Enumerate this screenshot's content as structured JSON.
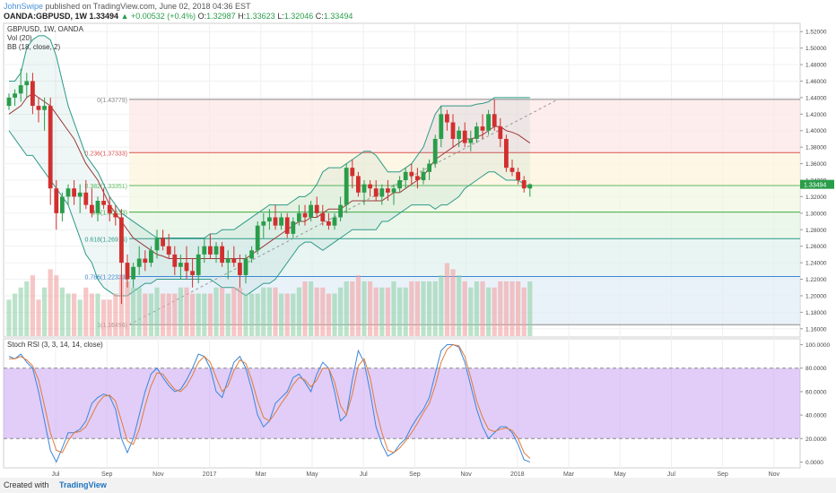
{
  "header": {
    "author": "JohnSwipe",
    "published": "published on TradingView.com, June 02, 2018 04:36 EST",
    "symbol": "OANDA:GBPUSD, 1W",
    "last": "1.33494",
    "change": "▲ +0.00532 (+0.4%)",
    "o_label": "O:",
    "o_value": "1.32987",
    "h_label": "H:",
    "h_value": "1.33623",
    "l_label": "L:",
    "l_value": "1.32046",
    "c_label": "C:",
    "c_value": "1.33494"
  },
  "legend": {
    "instrument": "GBP/USD, 1W, OANDA",
    "vol": "Vol (20)",
    "bb": "BB (18, close, 2)",
    "stoch": "Stoch RSI (3, 3, 14, 14, close)"
  },
  "footer": {
    "created": "Created with",
    "brand": "TradingView"
  },
  "colors": {
    "up": "#2a9d4a",
    "down": "#d22f2f",
    "bb": "#2e9a88",
    "stoch_k": "#3b86d9",
    "stoch_d": "#e07b3a",
    "stoch_band": "#c9a4f2"
  },
  "chart_data": {
    "type": "candlestick",
    "x_tick_labels": [
      "Jul",
      "Sep",
      "Nov",
      "2017",
      "Mar",
      "May",
      "Jul",
      "Sep",
      "Nov",
      "2018",
      "Mar",
      "May",
      "Jul",
      "Sep",
      "Nov"
    ],
    "price_axis_labels": [
      "1.52000",
      "1.50000",
      "1.48000",
      "1.46000",
      "1.44000",
      "1.42000",
      "1.40000",
      "1.38000",
      "1.36000",
      "1.34000",
      "1.32000",
      "1.30000",
      "1.28000",
      "1.26000",
      "1.24000",
      "1.22000",
      "1.20000",
      "1.18000",
      "1.16000"
    ],
    "price_ylim": [
      1.15,
      1.53
    ],
    "last_price_label": "1.33494",
    "fib_levels": [
      {
        "label": "0(1.43779)",
        "value": 1.43779,
        "color": "#888888"
      },
      {
        "label": "0.236(1.37333)",
        "value": 1.37333,
        "color": "#d9534f"
      },
      {
        "label": "0.382(1.33351)",
        "value": 1.33351,
        "color": "#5cb85c"
      },
      {
        "label": "0.5(1.30133)",
        "value": 1.30133,
        "color": "#3fae3f"
      },
      {
        "label": "0.618(1.26915)",
        "value": 1.26915,
        "color": "#2e9a88"
      },
      {
        "label": "0.786(1.22333)",
        "value": 1.22333,
        "color": "#3b86d9"
      },
      {
        "label": "1(1.16496)",
        "value": 1.16496,
        "color": "#888888"
      }
    ],
    "candles": [
      [
        1.43,
        1.445,
        1.425,
        1.44
      ],
      [
        1.44,
        1.45,
        1.43,
        1.445
      ],
      [
        1.445,
        1.475,
        1.435,
        1.455
      ],
      [
        1.455,
        1.47,
        1.44,
        1.46
      ],
      [
        1.46,
        1.47,
        1.42,
        1.43
      ],
      [
        1.43,
        1.44,
        1.41,
        1.425
      ],
      [
        1.425,
        1.44,
        1.4,
        1.43
      ],
      [
        1.43,
        1.44,
        1.31,
        1.33
      ],
      [
        1.33,
        1.34,
        1.28,
        1.3
      ],
      [
        1.3,
        1.325,
        1.29,
        1.32
      ],
      [
        1.32,
        1.335,
        1.31,
        1.33
      ],
      [
        1.33,
        1.34,
        1.31,
        1.32
      ],
      [
        1.32,
        1.335,
        1.3,
        1.325
      ],
      [
        1.325,
        1.34,
        1.305,
        1.31
      ],
      [
        1.31,
        1.33,
        1.295,
        1.3
      ],
      [
        1.3,
        1.32,
        1.29,
        1.315
      ],
      [
        1.315,
        1.33,
        1.305,
        1.31
      ],
      [
        1.31,
        1.32,
        1.29,
        1.3
      ],
      [
        1.3,
        1.31,
        1.285,
        1.295
      ],
      [
        1.295,
        1.305,
        1.19,
        1.24
      ],
      [
        1.24,
        1.25,
        1.21,
        1.22
      ],
      [
        1.22,
        1.24,
        1.21,
        1.235
      ],
      [
        1.235,
        1.26,
        1.225,
        1.245
      ],
      [
        1.245,
        1.255,
        1.23,
        1.24
      ],
      [
        1.24,
        1.26,
        1.235,
        1.255
      ],
      [
        1.255,
        1.28,
        1.245,
        1.27
      ],
      [
        1.27,
        1.28,
        1.255,
        1.26
      ],
      [
        1.26,
        1.275,
        1.245,
        1.25
      ],
      [
        1.25,
        1.26,
        1.225,
        1.235
      ],
      [
        1.235,
        1.25,
        1.22,
        1.24
      ],
      [
        1.24,
        1.26,
        1.22,
        1.23
      ],
      [
        1.23,
        1.245,
        1.21,
        1.225
      ],
      [
        1.225,
        1.26,
        1.215,
        1.25
      ],
      [
        1.25,
        1.27,
        1.24,
        1.26
      ],
      [
        1.26,
        1.275,
        1.245,
        1.25
      ],
      [
        1.25,
        1.265,
        1.24,
        1.26
      ],
      [
        1.26,
        1.265,
        1.235,
        1.24
      ],
      [
        1.24,
        1.255,
        1.22,
        1.245
      ],
      [
        1.245,
        1.26,
        1.235,
        1.24
      ],
      [
        1.24,
        1.25,
        1.21,
        1.225
      ],
      [
        1.225,
        1.25,
        1.215,
        1.245
      ],
      [
        1.245,
        1.26,
        1.24,
        1.255
      ],
      [
        1.255,
        1.29,
        1.25,
        1.285
      ],
      [
        1.285,
        1.3,
        1.27,
        1.29
      ],
      [
        1.29,
        1.305,
        1.28,
        1.295
      ],
      [
        1.295,
        1.31,
        1.28,
        1.285
      ],
      [
        1.285,
        1.3,
        1.28,
        1.295
      ],
      [
        1.295,
        1.3,
        1.27,
        1.275
      ],
      [
        1.275,
        1.295,
        1.27,
        1.29
      ],
      [
        1.29,
        1.31,
        1.285,
        1.3
      ],
      [
        1.3,
        1.31,
        1.285,
        1.295
      ],
      [
        1.295,
        1.315,
        1.29,
        1.31
      ],
      [
        1.31,
        1.32,
        1.295,
        1.3
      ],
      [
        1.3,
        1.31,
        1.285,
        1.29
      ],
      [
        1.29,
        1.3,
        1.28,
        1.285
      ],
      [
        1.285,
        1.3,
        1.28,
        1.295
      ],
      [
        1.295,
        1.32,
        1.29,
        1.31
      ],
      [
        1.31,
        1.36,
        1.3,
        1.355
      ],
      [
        1.355,
        1.365,
        1.33,
        1.345
      ],
      [
        1.345,
        1.35,
        1.32,
        1.325
      ],
      [
        1.325,
        1.34,
        1.31,
        1.335
      ],
      [
        1.335,
        1.34,
        1.32,
        1.33
      ],
      [
        1.33,
        1.34,
        1.315,
        1.32
      ],
      [
        1.32,
        1.335,
        1.31,
        1.33
      ],
      [
        1.33,
        1.34,
        1.315,
        1.325
      ],
      [
        1.325,
        1.335,
        1.31,
        1.33
      ],
      [
        1.33,
        1.345,
        1.325,
        1.34
      ],
      [
        1.34,
        1.355,
        1.33,
        1.35
      ],
      [
        1.35,
        1.36,
        1.335,
        1.345
      ],
      [
        1.345,
        1.355,
        1.33,
        1.34
      ],
      [
        1.34,
        1.355,
        1.335,
        1.35
      ],
      [
        1.35,
        1.365,
        1.34,
        1.36
      ],
      [
        1.36,
        1.395,
        1.355,
        1.39
      ],
      [
        1.39,
        1.43,
        1.38,
        1.42
      ],
      [
        1.42,
        1.425,
        1.4,
        1.41
      ],
      [
        1.41,
        1.42,
        1.38,
        1.39
      ],
      [
        1.39,
        1.405,
        1.38,
        1.4
      ],
      [
        1.4,
        1.41,
        1.38,
        1.385
      ],
      [
        1.385,
        1.4,
        1.375,
        1.39
      ],
      [
        1.39,
        1.41,
        1.385,
        1.405
      ],
      [
        1.405,
        1.42,
        1.39,
        1.4
      ],
      [
        1.4,
        1.425,
        1.395,
        1.42
      ],
      [
        1.42,
        1.438,
        1.4,
        1.405
      ],
      [
        1.405,
        1.415,
        1.38,
        1.39
      ],
      [
        1.39,
        1.395,
        1.35,
        1.355
      ],
      [
        1.355,
        1.365,
        1.345,
        1.35
      ],
      [
        1.35,
        1.355,
        1.335,
        1.34
      ],
      [
        1.34,
        1.345,
        1.325,
        1.33
      ],
      [
        1.33,
        1.336,
        1.32,
        1.335
      ]
    ],
    "bb_upper": [
      1.46,
      1.46,
      1.47,
      1.5,
      1.51,
      1.515,
      1.515,
      1.51,
      1.49,
      1.46,
      1.43,
      1.41,
      1.39,
      1.37,
      1.36,
      1.35,
      1.335,
      1.32,
      1.31,
      1.3,
      1.295,
      1.29,
      1.285,
      1.28,
      1.275,
      1.27,
      1.27,
      1.27,
      1.27,
      1.27,
      1.27,
      1.27,
      1.27,
      1.27,
      1.275,
      1.275,
      1.28,
      1.28,
      1.28,
      1.285,
      1.29,
      1.295,
      1.3,
      1.305,
      1.31,
      1.31,
      1.31,
      1.31,
      1.315,
      1.32,
      1.32,
      1.325,
      1.335,
      1.35,
      1.355,
      1.355,
      1.355,
      1.36,
      1.365,
      1.37,
      1.375,
      1.375,
      1.37,
      1.36,
      1.35,
      1.35,
      1.35,
      1.355,
      1.36,
      1.37,
      1.38,
      1.4,
      1.42,
      1.43,
      1.43,
      1.43,
      1.43,
      1.43,
      1.43,
      1.432,
      1.433,
      1.435,
      1.44,
      1.44,
      1.44,
      1.44,
      1.44,
      1.44,
      1.44
    ],
    "bb_mid": [
      1.42,
      1.425,
      1.43,
      1.44,
      1.445,
      1.44,
      1.435,
      1.43,
      1.42,
      1.41,
      1.4,
      1.39,
      1.375,
      1.36,
      1.35,
      1.34,
      1.325,
      1.31,
      1.3,
      1.29,
      1.28,
      1.27,
      1.265,
      1.26,
      1.255,
      1.25,
      1.248,
      1.245,
      1.245,
      1.245,
      1.245,
      1.245,
      1.245,
      1.245,
      1.245,
      1.245,
      1.245,
      1.245,
      1.245,
      1.245,
      1.245,
      1.25,
      1.255,
      1.26,
      1.265,
      1.27,
      1.275,
      1.28,
      1.285,
      1.29,
      1.29,
      1.295,
      1.295,
      1.3,
      1.305,
      1.305,
      1.305,
      1.31,
      1.315,
      1.315,
      1.315,
      1.315,
      1.315,
      1.315,
      1.32,
      1.325,
      1.325,
      1.33,
      1.335,
      1.34,
      1.345,
      1.355,
      1.365,
      1.37,
      1.375,
      1.38,
      1.385,
      1.39,
      1.39,
      1.392,
      1.395,
      1.4,
      1.405,
      1.405,
      1.4,
      1.398,
      1.395,
      1.39,
      1.385
    ],
    "bb_lower": [
      1.4,
      1.39,
      1.38,
      1.37,
      1.37,
      1.36,
      1.35,
      1.34,
      1.33,
      1.32,
      1.31,
      1.29,
      1.27,
      1.25,
      1.24,
      1.22,
      1.21,
      1.205,
      1.2,
      1.2,
      1.2,
      1.205,
      1.21,
      1.215,
      1.215,
      1.22,
      1.22,
      1.22,
      1.22,
      1.22,
      1.22,
      1.22,
      1.22,
      1.22,
      1.22,
      1.215,
      1.21,
      1.21,
      1.21,
      1.205,
      1.2,
      1.205,
      1.21,
      1.215,
      1.215,
      1.22,
      1.23,
      1.24,
      1.25,
      1.26,
      1.265,
      1.265,
      1.26,
      1.255,
      1.26,
      1.265,
      1.27,
      1.275,
      1.28,
      1.28,
      1.28,
      1.28,
      1.28,
      1.29,
      1.29,
      1.295,
      1.3,
      1.305,
      1.31,
      1.31,
      1.31,
      1.31,
      1.305,
      1.31,
      1.31,
      1.315,
      1.32,
      1.33,
      1.335,
      1.34,
      1.345,
      1.35,
      1.35,
      1.345,
      1.34,
      1.34,
      1.34,
      1.335,
      1.33
    ],
    "volume": [
      6,
      7,
      8,
      9,
      10,
      6,
      8,
      11,
      10,
      8,
      7,
      7,
      6,
      8,
      7,
      7,
      6,
      6,
      7,
      10,
      9,
      8,
      8,
      7,
      7,
      8,
      7,
      7,
      7,
      8,
      8,
      7,
      7,
      7,
      7,
      8,
      8,
      7,
      8,
      8,
      7,
      7,
      7,
      8,
      8,
      8,
      7,
      7,
      7,
      8,
      9,
      9,
      8,
      8,
      7,
      7,
      8,
      9,
      9,
      10,
      9,
      9,
      8,
      8,
      8,
      9,
      8,
      8,
      9,
      9,
      9,
      9,
      9,
      10,
      12,
      11,
      10,
      9,
      8,
      9,
      9,
      8,
      8,
      9,
      9,
      9,
      9,
      8,
      9
    ],
    "vol_ylim": [
      0,
      14
    ],
    "stoch_axis_labels": [
      "100.0000",
      "80.0000",
      "60.0000",
      "40.0000",
      "20.0000",
      "0.0000"
    ],
    "stoch_ylim": [
      -5,
      105
    ],
    "stoch_k": [
      90,
      88,
      92,
      85,
      80,
      60,
      35,
      10,
      0,
      12,
      25,
      25,
      28,
      35,
      50,
      55,
      58,
      56,
      45,
      20,
      8,
      20,
      40,
      60,
      75,
      80,
      72,
      65,
      60,
      62,
      70,
      80,
      92,
      90,
      80,
      60,
      55,
      70,
      85,
      90,
      80,
      62,
      40,
      30,
      35,
      50,
      55,
      60,
      72,
      75,
      68,
      60,
      75,
      85,
      80,
      60,
      35,
      40,
      70,
      95,
      85,
      60,
      30,
      15,
      5,
      8,
      15,
      20,
      30,
      38,
      45,
      55,
      75,
      95,
      100,
      100,
      98,
      85,
      65,
      45,
      30,
      20,
      25,
      30,
      30,
      25,
      15,
      2,
      0
    ],
    "stoch_d": [
      88,
      88,
      90,
      87,
      82,
      70,
      48,
      25,
      10,
      8,
      18,
      25,
      26,
      30,
      40,
      50,
      56,
      57,
      52,
      35,
      18,
      15,
      28,
      48,
      65,
      76,
      75,
      68,
      62,
      60,
      65,
      74,
      85,
      90,
      85,
      72,
      60,
      65,
      78,
      87,
      84,
      70,
      52,
      38,
      35,
      42,
      50,
      57,
      66,
      72,
      70,
      64,
      70,
      80,
      80,
      68,
      48,
      40,
      58,
      82,
      88,
      72,
      45,
      25,
      10,
      8,
      12,
      18,
      25,
      33,
      42,
      50,
      65,
      85,
      96,
      100,
      99,
      90,
      72,
      52,
      38,
      28,
      26,
      28,
      29,
      27,
      20,
      8,
      3
    ]
  }
}
